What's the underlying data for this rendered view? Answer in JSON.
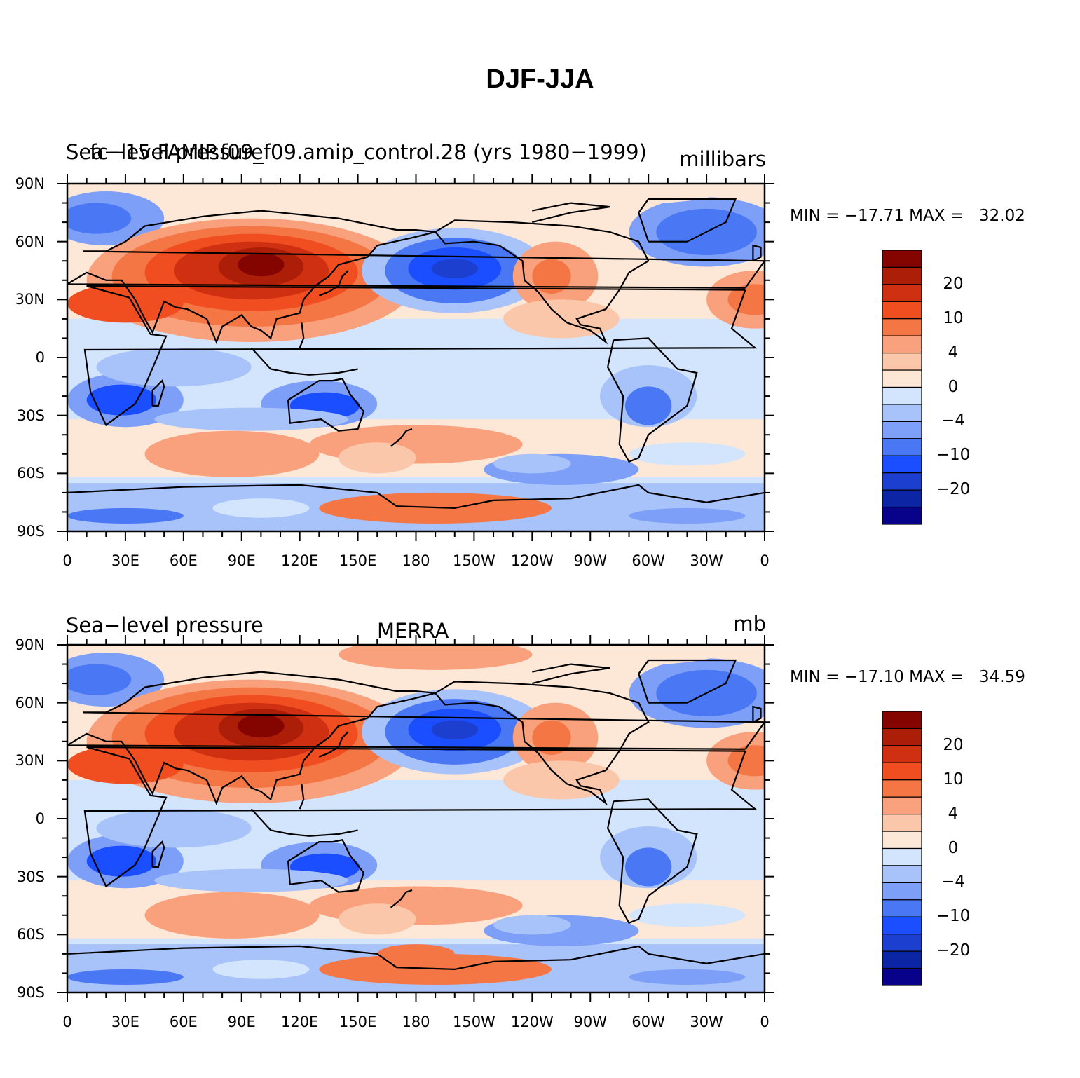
{
  "title": "DJF-JJA",
  "colors": {
    "levels": [
      "#08018a",
      "#0c25a4",
      "#1d3fd0",
      "#1a4eff",
      "#4a78f5",
      "#7e9ff8",
      "#a8c2fa",
      "#d2e5fd",
      "#fde7d7",
      "#fbc7ab",
      "#f9a07c",
      "#f47645",
      "#f04e21",
      "#cf3012",
      "#ac1e07",
      "#840500"
    ],
    "coastline": "#000000"
  },
  "colorbar": {
    "labels": [
      "20",
      "10",
      "4",
      "0",
      "−4",
      "−10",
      "−20"
    ]
  },
  "axes": {
    "y_ticks": [
      "90N",
      "60N",
      "30N",
      "0",
      "30S",
      "60S",
      "90S"
    ],
    "x_ticks": [
      "0",
      "30E",
      "60E",
      "90E",
      "120E",
      "150E",
      "180",
      "150W",
      "120W",
      "90W",
      "60W",
      "30W",
      "0"
    ]
  },
  "panels": [
    {
      "left_title": "Sea−level pressure",
      "center_title": "fc−15 FAMIP.f09_f09.amip_control.28 (yrs 1980−1999)",
      "right_title": "millibars",
      "min_label": "MIN = ",
      "min_value": "−17.71",
      "max_label": "MAX = ",
      "max_value": "32.02"
    },
    {
      "left_title": "Sea−level pressure",
      "center_title": "MERRA",
      "right_title": "mb",
      "min_label": "MIN = ",
      "min_value": "−17.10",
      "max_label": "MAX = ",
      "max_value": "34.59"
    }
  ]
}
